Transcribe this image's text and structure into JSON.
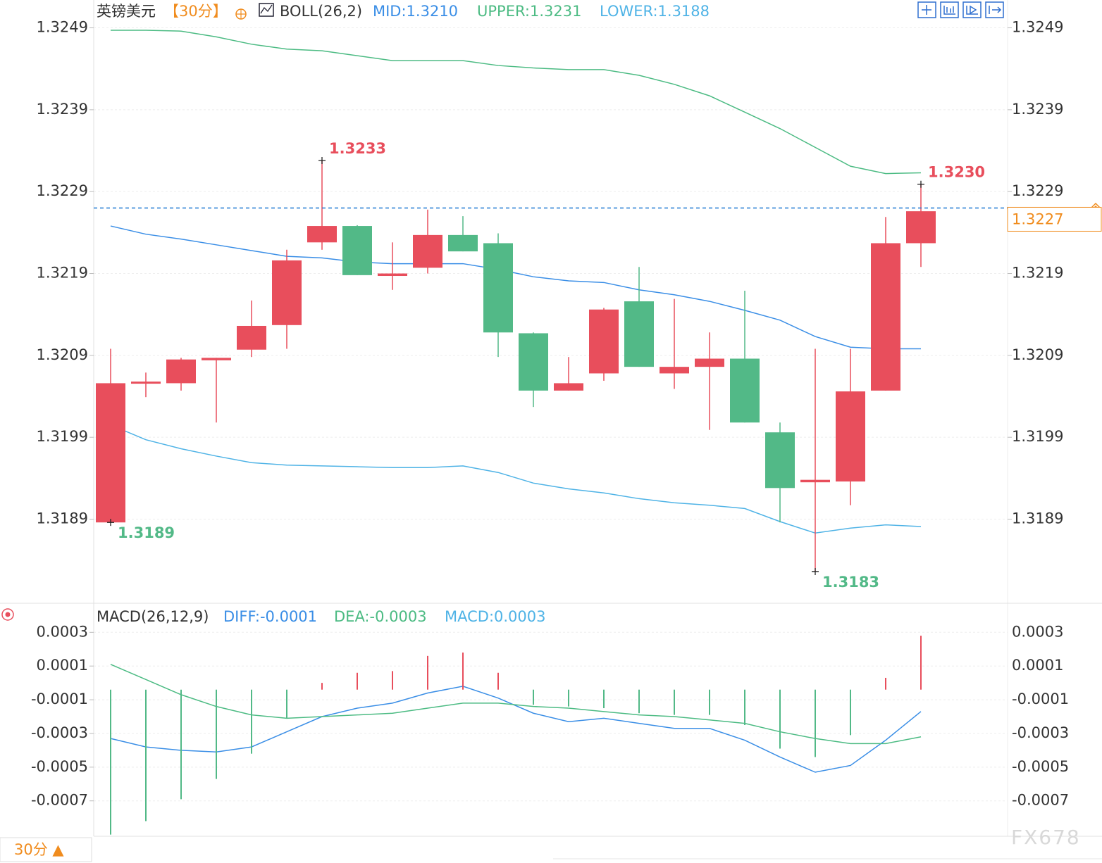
{
  "chart_data": [
    {
      "type": "candlestick",
      "title": "英镑美元",
      "period": "【30分】",
      "indicator": "BOLL(26,2)",
      "open": [
        1.31886,
        1.32056,
        1.32056,
        1.32084,
        1.32097,
        1.32127,
        1.32228,
        1.32248,
        1.32187,
        1.32197,
        1.32237,
        1.32227,
        1.32117,
        1.32047,
        1.32068,
        1.32156,
        1.32068,
        1.32076,
        1.32086,
        1.31996,
        1.31935,
        1.31936,
        1.32047,
        1.32227
      ],
      "high": [
        1.32098,
        1.32069,
        1.32087,
        1.32087,
        1.32157,
        1.32219,
        1.32328,
        1.32249,
        1.32228,
        1.32268,
        1.3226,
        1.32239,
        1.32118,
        1.32088,
        1.32148,
        1.32198,
        1.32159,
        1.32118,
        1.32169,
        1.32008,
        1.32098,
        1.32098,
        1.32259,
        1.32299
      ],
      "low": [
        1.31886,
        1.32039,
        1.32047,
        1.32008,
        1.32088,
        1.32098,
        1.32219,
        1.32188,
        1.3217,
        1.3219,
        1.32217,
        1.32088,
        1.32027,
        1.32047,
        1.32059,
        1.32076,
        1.32049,
        1.31999,
        1.32008,
        1.31886,
        1.31826,
        1.31907,
        1.32047,
        1.32198
      ],
      "close": [
        1.32056,
        1.32058,
        1.32085,
        1.32087,
        1.32126,
        1.32206,
        1.32248,
        1.32188,
        1.3219,
        1.32237,
        1.32217,
        1.32118,
        1.32047,
        1.32056,
        1.32146,
        1.32076,
        1.32076,
        1.32086,
        1.32008,
        1.31928,
        1.31938,
        1.32046,
        1.32227,
        1.32266
      ],
      "up_color": "#e84e5c",
      "down_color": "#52b987",
      "series": [
        {
          "name": "MID:1.3210",
          "color": "#3a8ee6",
          "values": [
            1.32248,
            1.32238,
            1.32232,
            1.32225,
            1.32218,
            1.32211,
            1.32209,
            1.32204,
            1.32202,
            1.32202,
            1.32202,
            1.32195,
            1.32186,
            1.32181,
            1.32179,
            1.3217,
            1.32164,
            1.32156,
            1.32145,
            1.32133,
            1.32113,
            1.321,
            1.32098,
            1.32098
          ]
        },
        {
          "name": "UPPER:1.3231",
          "color": "#4cbb83",
          "values": [
            1.32487,
            1.32487,
            1.32486,
            1.32479,
            1.3247,
            1.32464,
            1.32462,
            1.32456,
            1.3245,
            1.3245,
            1.3245,
            1.32444,
            1.32441,
            1.32439,
            1.32439,
            1.32432,
            1.32421,
            1.32407,
            1.32387,
            1.32367,
            1.32344,
            1.32321,
            1.32312,
            1.32313
          ]
        },
        {
          "name": "LOWER:1.3188",
          "color": "#4fb3e6",
          "values": [
            1.32005,
            1.31987,
            1.31976,
            1.31967,
            1.31959,
            1.31956,
            1.31955,
            1.31954,
            1.31953,
            1.31953,
            1.31955,
            1.31947,
            1.31934,
            1.31927,
            1.31922,
            1.31915,
            1.3191,
            1.31907,
            1.31903,
            1.31887,
            1.31873,
            1.31879,
            1.31883,
            1.31881
          ]
        }
      ],
      "high_labels": [
        "1.3233",
        "1.3230"
      ],
      "low_labels": [
        "1.3189",
        "1.3183"
      ],
      "last_price": 1.3227,
      "ylim": [
        1.31789,
        1.32524
      ],
      "yticks": [
        1.3249,
        1.3239,
        1.3229,
        1.3219,
        1.3209,
        1.3199,
        1.3189
      ],
      "grid": true
    },
    {
      "type": "macd",
      "title": "MACD(26,12,9)",
      "up_color": "#e84e5c",
      "down_color": "#52b987",
      "series": [
        {
          "name": "DIFF:-0.0001",
          "color": "#3a8ee6",
          "values": [
            -0.00029,
            -0.00034,
            -0.00036,
            -0.00037,
            -0.00034,
            -0.00025,
            -0.00016,
            -0.00011,
            -8e-05,
            -2e-05,
            2e-05,
            -5e-05,
            -0.00014,
            -0.00019,
            -0.00017,
            -0.0002,
            -0.00023,
            -0.00023,
            -0.0003,
            -0.0004,
            -0.00049,
            -0.00045,
            -0.0003,
            -0.00013
          ]
        },
        {
          "name": "DEA:-0.0003",
          "color": "#4cbb83",
          "values": [
            0.00015,
            6e-05,
            -3e-05,
            -0.0001,
            -0.00015,
            -0.00017,
            -0.00016,
            -0.00015,
            -0.00014,
            -0.00011,
            -8e-05,
            -8e-05,
            -0.0001,
            -0.00011,
            -0.00013,
            -0.00015,
            -0.00016,
            -0.00018,
            -0.0002,
            -0.00025,
            -0.00029,
            -0.00032,
            -0.00032,
            -0.00028
          ]
        },
        {
          "name": "MACD:0.0003",
          "color": "#4fb3e6",
          "type": "bar",
          "values": [
            -0.00086,
            -0.00078,
            -0.00065,
            -0.00053,
            -0.00038,
            -0.00017,
            4e-05,
            0.0001,
            0.00011,
            0.0002,
            0.00022,
            0.0001,
            -9e-05,
            -0.0001,
            -0.00011,
            -0.00014,
            -0.00015,
            -0.00015,
            -0.00021,
            -0.00035,
            -0.0004,
            -0.00027,
            7e-05,
            0.00032
          ]
        }
      ],
      "ylim": [
        -0.00087,
        0.0005
      ],
      "yticks": [
        {
          "value": 0.00034,
          "label": "0.0003"
        },
        {
          "value": 0.00014,
          "label": "0.0001"
        },
        {
          "value": -6e-05,
          "label": "-0.0001"
        },
        {
          "value": -0.00026,
          "label": "-0.0003"
        },
        {
          "value": -0.00046,
          "label": "-0.0005"
        },
        {
          "value": -0.00066,
          "label": "-0.0007"
        }
      ],
      "grid": true
    }
  ],
  "period_button": "30分 ▲",
  "watermark": "FX678"
}
